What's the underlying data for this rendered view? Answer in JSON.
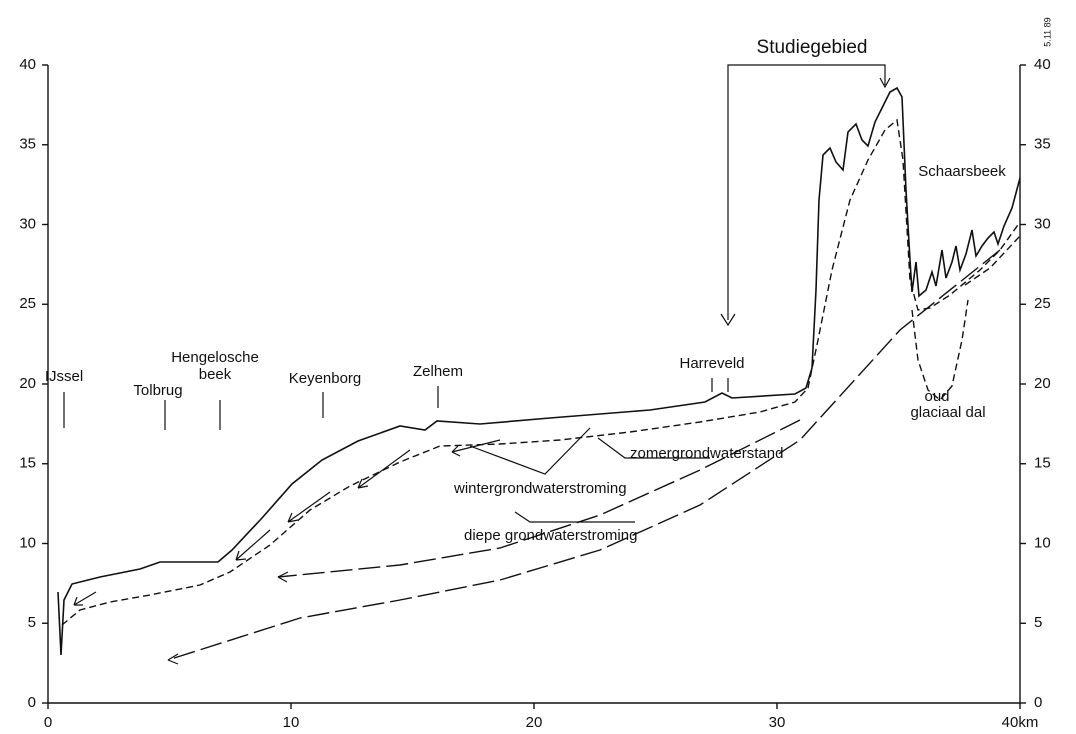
{
  "code": "5.11 89",
  "x_axis": {
    "lim": [
      0,
      40
    ],
    "ticks": [
      0,
      10,
      20,
      30,
      {
        "value": 40,
        "label": "40km"
      }
    ]
  },
  "y_axis": {
    "lim": [
      0,
      40
    ],
    "ticks": [
      0,
      5,
      10,
      15,
      20,
      25,
      30,
      35,
      40
    ]
  },
  "annotations": {
    "study_area": "Studiegebied",
    "schaarsbeek": "Schaarsbeek",
    "ijssel": "IJssel",
    "tolbrug": "Tolbrug",
    "hengelosche_beek": [
      "Hengelosche",
      "beek"
    ],
    "keyenborg": "Keyenborg",
    "zelhem": "Zelhem",
    "harreveld": "Harreveld",
    "oud_glaciaal_dal": [
      "oud",
      "glaciaal dal"
    ],
    "summer": "zomergrondwaterstand",
    "winter": "wintergrondwaterstroming",
    "deep": "diepe grondwaterstroming"
  }
}
